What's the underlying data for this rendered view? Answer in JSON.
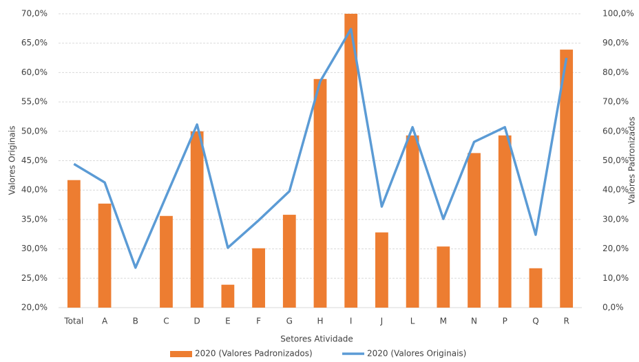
{
  "chart_data": {
    "type": "bar-line",
    "x_label": "Setores Atividade",
    "y_label": "Valores Originais",
    "y2_label": "Valores Padronizados",
    "categories": [
      "Total",
      "A",
      "B",
      "C",
      "D",
      "E",
      "F",
      "G",
      "H",
      "I",
      "J",
      "L",
      "M",
      "N",
      "P",
      "Q",
      "R"
    ],
    "series": [
      {
        "name": "2020 (Valores Padronizados)",
        "type": "bar",
        "color": "#ed7d31",
        "values": [
          41.7,
          37.7,
          null,
          35.6,
          50.0,
          23.9,
          30.1,
          35.8,
          58.9,
          70.0,
          32.8,
          49.3,
          30.4,
          46.3,
          49.3,
          26.7,
          63.9
        ]
      },
      {
        "name": "2020 (Valores Originais)",
        "type": "line",
        "axis": "y2",
        "color": "#5b9bd5",
        "values": [
          48.9,
          42.6,
          13.6,
          38.0,
          62.3,
          20.4,
          29.7,
          39.6,
          77.0,
          94.8,
          34.4,
          61.4,
          30.2,
          56.4,
          61.4,
          24.8,
          85.0
        ]
      }
    ],
    "ylim": [
      20,
      70
    ],
    "yticks": [
      {
        "value": 20,
        "label": "20,0%"
      },
      {
        "value": 25,
        "label": "25,0%"
      },
      {
        "value": 30,
        "label": "30,0%"
      },
      {
        "value": 35,
        "label": "35,0%"
      },
      {
        "value": 40,
        "label": "40,0%"
      },
      {
        "value": 45,
        "label": "45,0%"
      },
      {
        "value": 50,
        "label": "50,0%"
      },
      {
        "value": 55,
        "label": "55,0%"
      },
      {
        "value": 60,
        "label": "60,0%"
      },
      {
        "value": 65,
        "label": "65,0%"
      },
      {
        "value": 70,
        "label": "70,0%"
      }
    ],
    "y2lim": [
      0,
      100
    ],
    "y2ticks": [
      {
        "value": 0,
        "label": "0,0%"
      },
      {
        "value": 10,
        "label": "10,0%"
      },
      {
        "value": 20,
        "label": "20,0%"
      },
      {
        "value": 30,
        "label": "30,0%"
      },
      {
        "value": 40,
        "label": "40,0%"
      },
      {
        "value": 50,
        "label": "50,0%"
      },
      {
        "value": 60,
        "label": "60,0%"
      },
      {
        "value": 70,
        "label": "70,0%"
      },
      {
        "value": 80,
        "label": "80,0%"
      },
      {
        "value": 90,
        "label": "90,0%"
      },
      {
        "value": 100,
        "label": "100,0%"
      }
    ],
    "grid": true
  }
}
